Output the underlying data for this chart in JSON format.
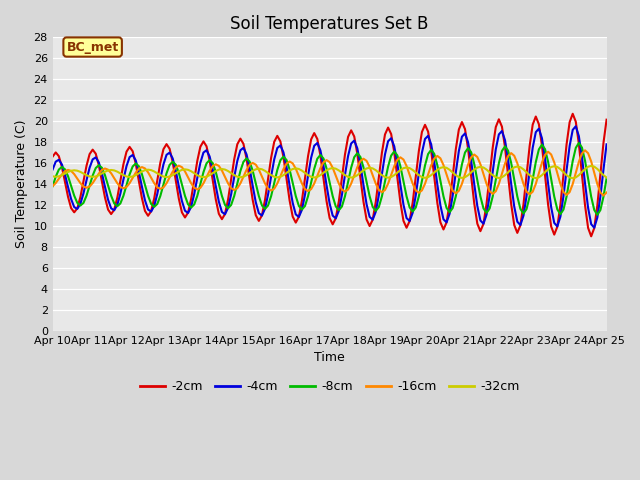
{
  "title": "Soil Temperatures Set B",
  "xlabel": "Time",
  "ylabel": "Soil Temperature (C)",
  "annotation": "BC_met",
  "ylim": [
    0,
    28
  ],
  "yticks": [
    0,
    2,
    4,
    6,
    8,
    10,
    12,
    14,
    16,
    18,
    20,
    22,
    24,
    26,
    28
  ],
  "xtick_labels": [
    "Apr 10",
    "Apr 11",
    "Apr 12",
    "Apr 13",
    "Apr 14",
    "Apr 15",
    "Apr 16",
    "Apr 17",
    "Apr 18",
    "Apr 19",
    "Apr 20",
    "Apr 21",
    "Apr 22",
    "Apr 23",
    "Apr 24",
    "Apr 25"
  ],
  "colors": {
    "-2cm": "#dd0000",
    "-4cm": "#0000dd",
    "-8cm": "#00bb00",
    "-16cm": "#ff8800",
    "-32cm": "#cccc00"
  },
  "line_width": 1.5,
  "fig_bg_color": "#d8d8d8",
  "plot_bg_color": "#e8e8e8",
  "annotation_bg": "#ffff99",
  "annotation_border": "#883300",
  "legend_labels": [
    "-2cm",
    "-4cm",
    "-8cm",
    "-16cm",
    "-32cm"
  ]
}
